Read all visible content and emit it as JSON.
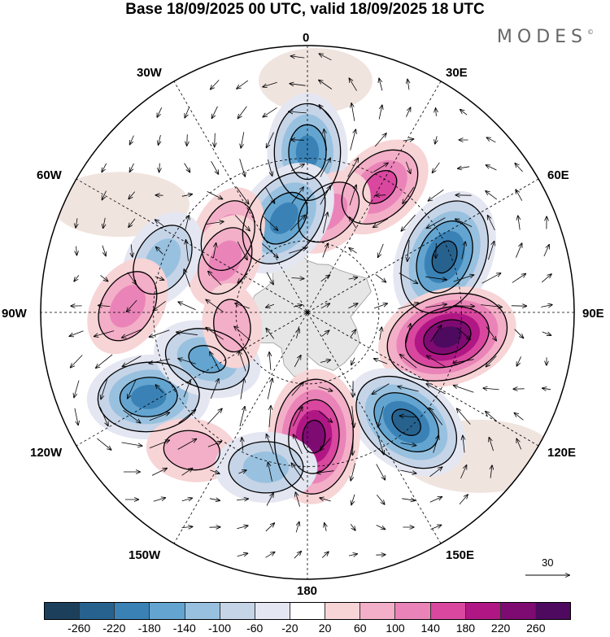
{
  "header": {
    "title": "Base 18/09/2025 00 UTC, valid 18/09/2025 18 UTC",
    "brand": "MODES",
    "brand_mark": "©"
  },
  "map": {
    "projection": "south-polar-stereographic",
    "longitude_labels": {
      "top": "0",
      "top_right": "30E",
      "upper_right": "60E",
      "right": "90E",
      "lower_right": "120E",
      "bottom_right": "150E",
      "bottom": "180",
      "bottom_left": "150W",
      "lower_left": "120W",
      "left": "90W",
      "upper_left": "60W",
      "top_left": "30W"
    },
    "anomaly_centers": [
      {
        "lon": 0,
        "lat": -28,
        "sign": "negative",
        "value": -180
      },
      {
        "lon": 30,
        "lat": -33,
        "sign": "positive",
        "value": 160
      },
      {
        "lon": 12,
        "lat": -48,
        "sign": "positive",
        "value": 110
      },
      {
        "lon": -14,
        "lat": -50,
        "sign": "negative",
        "value": -200
      },
      {
        "lon": -46,
        "lat": -45,
        "sign": "positive",
        "value": 120
      },
      {
        "lon": -58,
        "lat": -50,
        "sign": "positive",
        "value": 110
      },
      {
        "lon": -70,
        "lat": -30,
        "sign": "negative",
        "value": -130
      },
      {
        "lon": -88,
        "lat": -22,
        "sign": "positive",
        "value": 130
      },
      {
        "lon": 68,
        "lat": -32,
        "sign": "negative",
        "value": -250
      },
      {
        "lon": 100,
        "lat": -34,
        "sign": "positive",
        "value": 260
      },
      {
        "lon": 138,
        "lat": -32,
        "sign": "negative",
        "value": -230
      },
      {
        "lon": 177,
        "lat": -40,
        "sign": "positive",
        "value": 240
      },
      {
        "lon": -118,
        "lat": -22,
        "sign": "negative",
        "value": -200
      },
      {
        "lon": -115,
        "lat": -45,
        "sign": "negative",
        "value": -150
      },
      {
        "lon": -140,
        "lat": -22,
        "sign": "positive",
        "value": 90
      },
      {
        "lon": -165,
        "lat": -28,
        "sign": "negative",
        "value": -130
      },
      {
        "lon": -100,
        "lat": -58,
        "sign": "positive",
        "value": 70
      }
    ]
  },
  "legend": {
    "colors": [
      "#1c3f5c",
      "#27628f",
      "#3a82b6",
      "#63a5d0",
      "#98c1df",
      "#c6d4e8",
      "#e4e6f1",
      "#ffffff",
      "#f7d4d6",
      "#f3afc7",
      "#ea84b8",
      "#d9479f",
      "#b01785",
      "#7e0b72",
      "#4d0a5e"
    ],
    "ticks": [
      "-260",
      "-220",
      "-180",
      "-140",
      "-100",
      "-60",
      "-20",
      "20",
      "60",
      "100",
      "140",
      "180",
      "220",
      "260"
    ]
  },
  "reference_vector": {
    "value": "30"
  }
}
